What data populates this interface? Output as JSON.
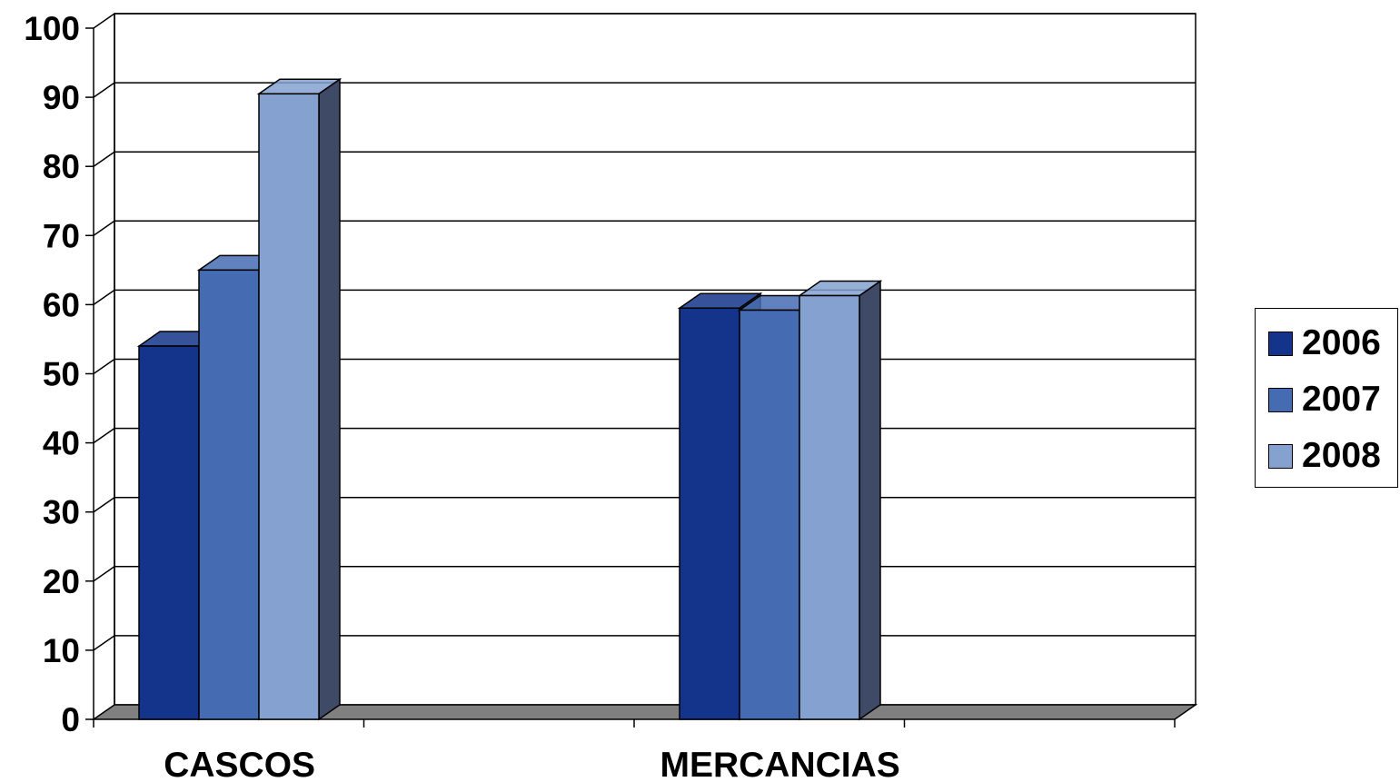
{
  "chart_data": {
    "type": "bar",
    "style": "3d-clustered-column",
    "categories": [
      "CASCOS",
      "MERCANCIAS"
    ],
    "series": [
      {
        "name": "2006",
        "values": [
          54,
          59.5
        ],
        "color": "#13348a"
      },
      {
        "name": "2007",
        "values": [
          65,
          59.2
        ],
        "color": "#456cb3"
      },
      {
        "name": "2008",
        "values": [
          90.5,
          61.3
        ],
        "color": "#84a1cf"
      }
    ],
    "ylim": [
      0,
      100
    ],
    "yticks": [
      "0",
      "10",
      "20",
      "30",
      "40",
      "50",
      "60",
      "70",
      "80",
      "90",
      "100"
    ],
    "title": "",
    "xlabel": "",
    "ylabel": "",
    "grid": true,
    "legend_position": "right",
    "colors": {
      "floor": "#808080",
      "side_shade": "#3e4a66",
      "grid": "#000000"
    }
  }
}
